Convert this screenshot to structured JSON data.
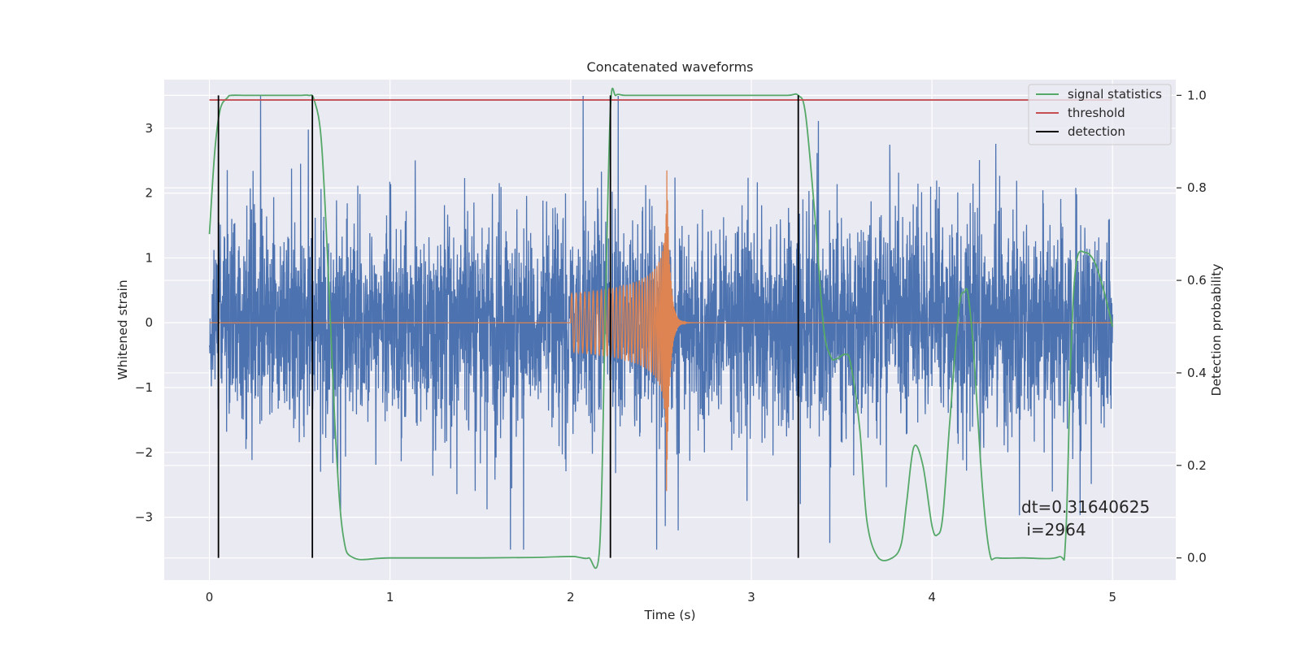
{
  "chart_data": {
    "type": "line",
    "title": "Concatenated waveforms",
    "xlabel": "Time (s)",
    "ylabel_left": "Whitened strain",
    "ylabel_right": "Detection probability",
    "xlim": [
      -0.25,
      5.35
    ],
    "ylim_left": [
      -3.97,
      3.75
    ],
    "ylim_right": [
      -0.048,
      1.034
    ],
    "x_ticks": [
      0,
      1,
      2,
      3,
      4,
      5
    ],
    "x_tick_labels": [
      "0",
      "1",
      "2",
      "3",
      "4",
      "5"
    ],
    "y_left_ticks": [
      -3,
      -2,
      -1,
      0,
      1,
      2,
      3
    ],
    "y_left_tick_labels": [
      "−3",
      "−2",
      "−1",
      "0",
      "1",
      "2",
      "3"
    ],
    "y_right_ticks": [
      0.0,
      0.2,
      0.4,
      0.6,
      0.8,
      1.0
    ],
    "y_right_tick_labels": [
      "0.0",
      "0.2",
      "0.4",
      "0.6",
      "0.8",
      "1.0"
    ],
    "grid": true,
    "legend_position": "upper right",
    "series": [
      {
        "name": "whitened strain (noise)",
        "axis": "left",
        "color": "#4c72b0",
        "kind": "noise",
        "x_range": [
          0,
          5
        ],
        "amplitude_envelope": 3.2,
        "typical_peak": 2.0
      },
      {
        "name": "injected waveform",
        "axis": "left",
        "color": "#dd8452",
        "kind": "chirp",
        "start": 2.0,
        "merger": 2.53,
        "end": 3.0,
        "start_amplitude": 0.45,
        "peak_amplitude": 2.7
      },
      {
        "name": "signal statistics",
        "axis": "right",
        "color": "#55a868",
        "x": [
          0,
          0.03,
          0.06,
          0.1,
          0.12,
          0.2,
          0.3,
          0.4,
          0.5,
          0.55,
          0.58,
          0.62,
          0.66,
          0.7,
          0.74,
          0.8,
          1.0,
          1.5,
          1.8,
          2.0,
          2.05,
          2.1,
          2.16,
          2.19,
          2.22,
          2.25,
          2.3,
          2.4,
          2.6,
          2.8,
          3.0,
          3.2,
          3.26,
          3.3,
          3.35,
          3.4,
          3.44,
          3.47,
          3.52,
          3.55,
          3.6,
          3.64,
          3.7,
          3.78,
          3.83,
          3.86,
          3.9,
          3.95,
          4.0,
          4.03,
          4.06,
          4.1,
          4.15,
          4.18,
          4.2,
          4.23,
          4.28,
          4.32,
          4.36,
          4.5,
          4.7,
          4.74,
          4.77,
          4.8,
          4.85,
          4.9,
          4.95,
          5.0
        ],
        "y": [
          0.7,
          0.88,
          0.97,
          0.995,
          1.0,
          1.0,
          1.0,
          1.0,
          1.0,
          1.0,
          0.99,
          0.9,
          0.6,
          0.25,
          0.05,
          0.0,
          0.0,
          0.0,
          0.001,
          0.003,
          0.001,
          0.0,
          0.02,
          0.5,
          0.97,
          1.0,
          1.0,
          1.0,
          1.0,
          1.0,
          1.0,
          1.0,
          1.0,
          0.96,
          0.75,
          0.5,
          0.435,
          0.43,
          0.44,
          0.42,
          0.28,
          0.08,
          0.002,
          0.0,
          0.03,
          0.12,
          0.24,
          0.2,
          0.07,
          0.05,
          0.09,
          0.3,
          0.54,
          0.575,
          0.57,
          0.45,
          0.15,
          0.01,
          0.0,
          0.0,
          0.002,
          0.04,
          0.45,
          0.64,
          0.66,
          0.64,
          0.58,
          0.5
        ]
      },
      {
        "name": "threshold",
        "axis": "right",
        "color": "#c44e52",
        "x": [
          0,
          5
        ],
        "y": [
          0.99,
          0.99
        ]
      },
      {
        "name": "detection",
        "axis": "right",
        "color": "#000000",
        "kind": "vlines",
        "x": [
          0.05,
          0.57,
          2.22,
          3.26
        ],
        "ymin": 0.0,
        "ymax": 1.0
      }
    ],
    "legend": [
      "signal statistics",
      "threshold",
      "detection"
    ],
    "annotation": {
      "line1": "dt=0.31640625",
      "line2": " i=2964",
      "x": 4.5,
      "y_left": -3.3
    }
  }
}
